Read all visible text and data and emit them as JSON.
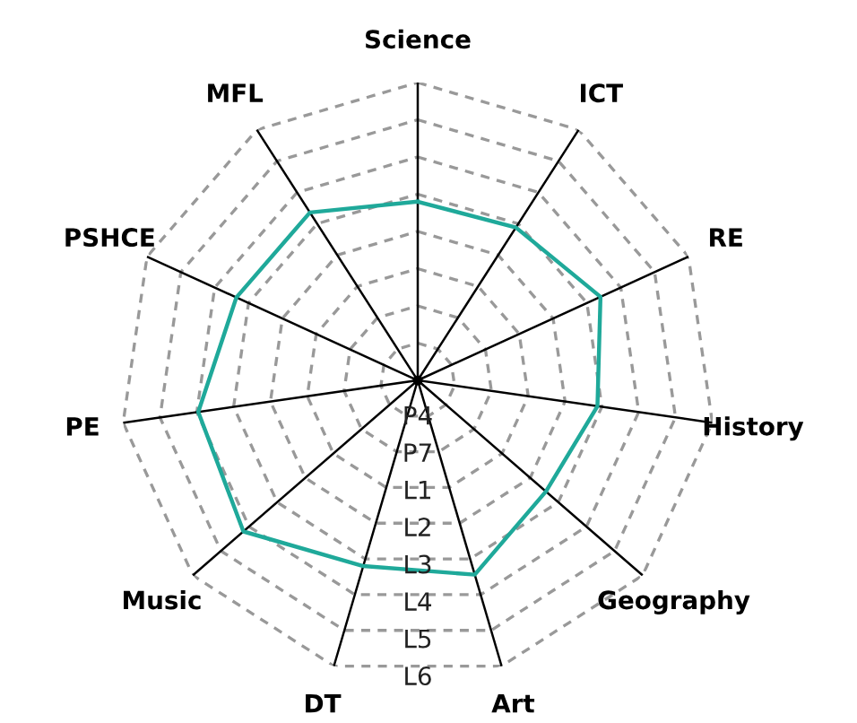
{
  "chart_data": {
    "type": "radar",
    "categories": [
      "Science",
      "ICT",
      "RE",
      "History",
      "Geography",
      "Art",
      "DT",
      "Music",
      "PE",
      "PSHCE",
      "MFL"
    ],
    "series": [
      {
        "color": "#1fa99a",
        "values": [
          6.0,
          6.1,
          6.75,
          6.1,
          5.7,
          6.8,
          6.5,
          7.75,
          7.45,
          6.7,
          6.7
        ]
      }
    ],
    "ylim": [
      0,
      10
    ],
    "yticks": [
      {
        "value": 1.25,
        "label": "P4"
      },
      {
        "value": 2.5,
        "label": "P7"
      },
      {
        "value": 3.75,
        "label": "L1"
      },
      {
        "value": 5,
        "label": "L2"
      },
      {
        "value": 6.25,
        "label": "L3"
      },
      {
        "value": 7.5,
        "label": "L4"
      },
      {
        "value": 8.75,
        "label": "L5"
      },
      {
        "value": 10,
        "label": "L6"
      }
    ],
    "grid": true,
    "marker": "none",
    "line_style": "solid"
  }
}
